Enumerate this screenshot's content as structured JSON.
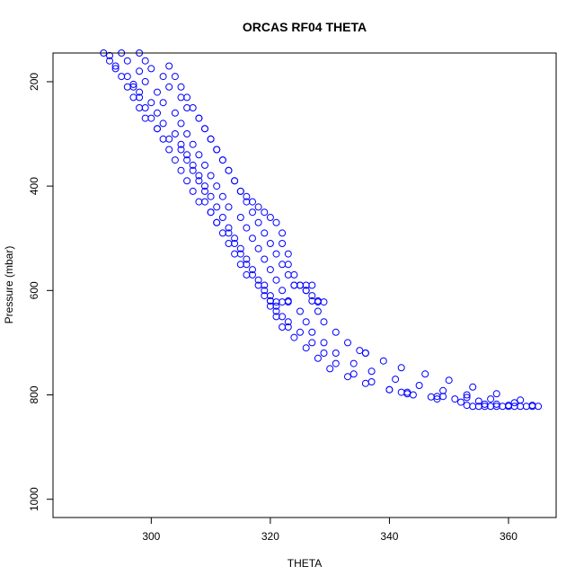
{
  "chart_data": {
    "type": "scatter",
    "title": "ORCAS RF04 THETA",
    "xlabel": "THETA",
    "ylabel": "Pressure (mbar)",
    "xlim": [
      283.5,
      368
    ],
    "ylim": [
      1035,
      145
    ],
    "y_reversed": true,
    "x_ticks": [
      300,
      320,
      340,
      360
    ],
    "y_ticks": [
      200,
      400,
      600,
      800,
      1000
    ],
    "grid": false,
    "marker": "open-circle",
    "colors": {
      "points": "#0000ff"
    },
    "series": [
      {
        "name": "",
        "points": [
          [
            292,
            145
          ],
          [
            293,
            160
          ],
          [
            294,
            175
          ],
          [
            296,
            190
          ],
          [
            297,
            205
          ],
          [
            298,
            220
          ],
          [
            300,
            240
          ],
          [
            301,
            260
          ],
          [
            302,
            280
          ],
          [
            304,
            300
          ],
          [
            305,
            320
          ],
          [
            306,
            340
          ],
          [
            307,
            360
          ],
          [
            308,
            380
          ],
          [
            309,
            400
          ],
          [
            310,
            420
          ],
          [
            311,
            440
          ],
          [
            312,
            460
          ],
          [
            313,
            480
          ],
          [
            314,
            500
          ],
          [
            315,
            520
          ],
          [
            316,
            540
          ],
          [
            317,
            560
          ],
          [
            318,
            580
          ],
          [
            319,
            600
          ],
          [
            320,
            620
          ],
          [
            321,
            640
          ],
          [
            323,
            660
          ],
          [
            325,
            680
          ],
          [
            327,
            700
          ],
          [
            329,
            720
          ],
          [
            331,
            740
          ],
          [
            334,
            760
          ],
          [
            337,
            775
          ],
          [
            340,
            790
          ],
          [
            344,
            800
          ],
          [
            348,
            808
          ],
          [
            352,
            814
          ],
          [
            356,
            818
          ],
          [
            360,
            820
          ],
          [
            364,
            822
          ],
          [
            295,
            145
          ],
          [
            296,
            160
          ],
          [
            298,
            180
          ],
          [
            299,
            200
          ],
          [
            301,
            220
          ],
          [
            302,
            240
          ],
          [
            304,
            260
          ],
          [
            305,
            280
          ],
          [
            306,
            300
          ],
          [
            307,
            320
          ],
          [
            308,
            340
          ],
          [
            309,
            360
          ],
          [
            310,
            380
          ],
          [
            311,
            400
          ],
          [
            312,
            420
          ],
          [
            313,
            440
          ],
          [
            315,
            460
          ],
          [
            316,
            480
          ],
          [
            317,
            500
          ],
          [
            318,
            520
          ],
          [
            319,
            540
          ],
          [
            320,
            560
          ],
          [
            321,
            580
          ],
          [
            322,
            600
          ],
          [
            323,
            620
          ],
          [
            325,
            640
          ],
          [
            326,
            660
          ],
          [
            327,
            680
          ],
          [
            329,
            700
          ],
          [
            331,
            720
          ],
          [
            334,
            740
          ],
          [
            337,
            755
          ],
          [
            341,
            770
          ],
          [
            345,
            782
          ],
          [
            349,
            792
          ],
          [
            353,
            800
          ],
          [
            357,
            808
          ],
          [
            361,
            815
          ],
          [
            364,
            820
          ],
          [
            298,
            145
          ],
          [
            299,
            160
          ],
          [
            300,
            175
          ],
          [
            302,
            190
          ],
          [
            303,
            210
          ],
          [
            305,
            230
          ],
          [
            306,
            250
          ],
          [
            308,
            270
          ],
          [
            309,
            290
          ],
          [
            310,
            310
          ],
          [
            311,
            330
          ],
          [
            312,
            350
          ],
          [
            313,
            370
          ],
          [
            314,
            390
          ],
          [
            315,
            410
          ],
          [
            316,
            430
          ],
          [
            317,
            450
          ],
          [
            318,
            470
          ],
          [
            319,
            490
          ],
          [
            320,
            510
          ],
          [
            321,
            530
          ],
          [
            322,
            550
          ],
          [
            323,
            570
          ],
          [
            324,
            590
          ],
          [
            326,
            600
          ],
          [
            327,
            620
          ],
          [
            328,
            640
          ],
          [
            329,
            660
          ],
          [
            331,
            680
          ],
          [
            333,
            700
          ],
          [
            336,
            720
          ],
          [
            339,
            735
          ],
          [
            342,
            748
          ],
          [
            346,
            760
          ],
          [
            350,
            772
          ],
          [
            354,
            785
          ],
          [
            358,
            798
          ],
          [
            362,
            810
          ],
          [
            293,
            150
          ],
          [
            294,
            170
          ],
          [
            295,
            190
          ],
          [
            296,
            210
          ],
          [
            297,
            230
          ],
          [
            298,
            250
          ],
          [
            299,
            270
          ],
          [
            301,
            290
          ],
          [
            303,
            310
          ],
          [
            305,
            330
          ],
          [
            306,
            350
          ],
          [
            307,
            370
          ],
          [
            308,
            390
          ],
          [
            309,
            410
          ],
          [
            309,
            430
          ],
          [
            310,
            450
          ],
          [
            311,
            470
          ],
          [
            312,
            490
          ],
          [
            313,
            510
          ],
          [
            314,
            530
          ],
          [
            315,
            550
          ],
          [
            316,
            570
          ],
          [
            318,
            590
          ],
          [
            319,
            610
          ],
          [
            320,
            630
          ],
          [
            321,
            650
          ],
          [
            322,
            670
          ],
          [
            324,
            690
          ],
          [
            326,
            710
          ],
          [
            328,
            730
          ],
          [
            330,
            750
          ],
          [
            333,
            765
          ],
          [
            336,
            778
          ],
          [
            340,
            790
          ],
          [
            343,
            798
          ],
          [
            347,
            804
          ],
          [
            351,
            808
          ],
          [
            355,
            812
          ],
          [
            303,
            170
          ],
          [
            304,
            190
          ],
          [
            305,
            210
          ],
          [
            306,
            230
          ],
          [
            307,
            250
          ],
          [
            308,
            270
          ],
          [
            309,
            290
          ],
          [
            310,
            310
          ],
          [
            311,
            330
          ],
          [
            312,
            350
          ],
          [
            313,
            370
          ],
          [
            314,
            390
          ],
          [
            315,
            410
          ],
          [
            316,
            420
          ],
          [
            317,
            430
          ],
          [
            318,
            440
          ],
          [
            319,
            450
          ],
          [
            320,
            460
          ],
          [
            321,
            470
          ],
          [
            322,
            490
          ],
          [
            322,
            510
          ],
          [
            323,
            530
          ],
          [
            323,
            550
          ],
          [
            324,
            570
          ],
          [
            325,
            590
          ],
          [
            326,
            600
          ],
          [
            327,
            610
          ],
          [
            328,
            620
          ],
          [
            297,
            210
          ],
          [
            298,
            230
          ],
          [
            299,
            250
          ],
          [
            300,
            270
          ],
          [
            301,
            290
          ],
          [
            302,
            310
          ],
          [
            303,
            330
          ],
          [
            304,
            350
          ],
          [
            305,
            370
          ],
          [
            306,
            390
          ],
          [
            307,
            410
          ],
          [
            308,
            430
          ],
          [
            310,
            450
          ],
          [
            311,
            470
          ],
          [
            313,
            490
          ],
          [
            314,
            510
          ],
          [
            315,
            530
          ],
          [
            316,
            550
          ],
          [
            317,
            570
          ],
          [
            319,
            590
          ],
          [
            320,
            610
          ],
          [
            321,
            630
          ],
          [
            322,
            650
          ],
          [
            323,
            670
          ],
          [
            320,
            620
          ],
          [
            321,
            622
          ],
          [
            322,
            622
          ],
          [
            323,
            622
          ],
          [
            324,
            590
          ],
          [
            325,
            590
          ],
          [
            326,
            590
          ],
          [
            327,
            590
          ],
          [
            328,
            622
          ],
          [
            329,
            622
          ],
          [
            353,
            820
          ],
          [
            354,
            822
          ],
          [
            355,
            822
          ],
          [
            356,
            822
          ],
          [
            357,
            822
          ],
          [
            358,
            822
          ],
          [
            359,
            822
          ],
          [
            360,
            822
          ],
          [
            361,
            822
          ],
          [
            362,
            822
          ],
          [
            363,
            822
          ],
          [
            365,
            822
          ],
          [
            335,
            715
          ],
          [
            336,
            720
          ],
          [
            342,
            795
          ],
          [
            343,
            795
          ],
          [
            348,
            803
          ],
          [
            349,
            803
          ],
          [
            353,
            805
          ],
          [
            358,
            818
          ]
        ]
      }
    ]
  }
}
